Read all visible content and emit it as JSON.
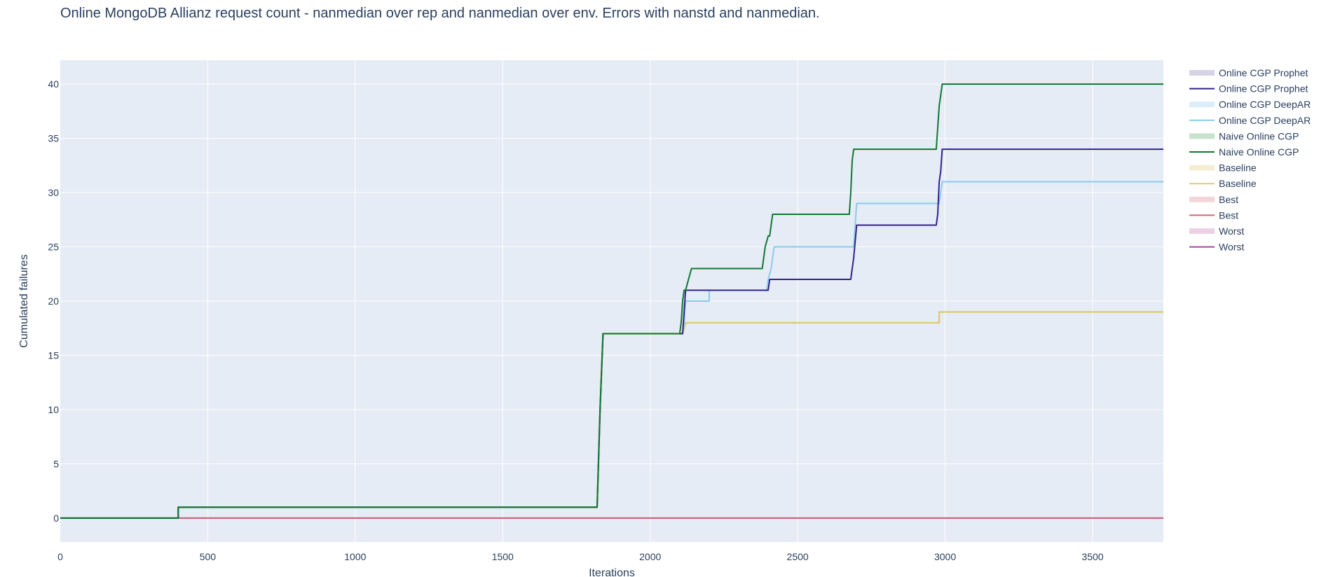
{
  "chart_data": {
    "type": "line",
    "title": "Online MongoDB Allianz request count - nanmedian over rep and nanmedian over env. Errors with nanstd and nanmedian.",
    "xlabel": "Iterations",
    "ylabel": "Cumulated failures",
    "xlim": [
      0,
      3740
    ],
    "ylim": [
      -2.2,
      42.2
    ],
    "xticks": [
      0,
      500,
      1000,
      1500,
      2000,
      2500,
      3000,
      3500
    ],
    "yticks": [
      0,
      5,
      10,
      15,
      20,
      25,
      30,
      35,
      40
    ],
    "grid": true,
    "legend_position": "right",
    "colors": {
      "plot_bg": "#e5ecf6",
      "grid": "#ffffff",
      "text": "#2a3f5f"
    },
    "legend": [
      {
        "label": "Online CGP Prophet",
        "kind": "band",
        "color": "#d7d2e8"
      },
      {
        "label": "Online CGP Prophet",
        "kind": "line",
        "color": "#332288"
      },
      {
        "label": "Online CGP DeepAR",
        "kind": "band",
        "color": "#dbeef9"
      },
      {
        "label": "Online CGP DeepAR",
        "kind": "line",
        "color": "#88ccee"
      },
      {
        "label": "Naive Online CGP",
        "kind": "band",
        "color": "#c9e1cf"
      },
      {
        "label": "Naive Online CGP",
        "kind": "line",
        "color": "#117733"
      },
      {
        "label": "Baseline",
        "kind": "band",
        "color": "#f6eed3"
      },
      {
        "label": "Baseline",
        "kind": "line",
        "color": "#ddcc77"
      },
      {
        "label": "Best",
        "kind": "band",
        "color": "#f2d6dc"
      },
      {
        "label": "Best",
        "kind": "line",
        "color": "#cc6677"
      },
      {
        "label": "Worst",
        "kind": "band",
        "color": "#ecd0e6"
      },
      {
        "label": "Worst",
        "kind": "line",
        "color": "#aa4499"
      }
    ],
    "series": [
      {
        "name": "Worst",
        "color": "#aa4499",
        "width": 2,
        "x": [
          0,
          3740
        ],
        "y": [
          0,
          0
        ]
      },
      {
        "name": "Best",
        "color": "#cc6677",
        "width": 2,
        "x": [
          0,
          3740
        ],
        "y": [
          0,
          0
        ]
      },
      {
        "name": "Baseline",
        "color": "#ddcc77",
        "width": 2.5,
        "x": [
          0,
          400,
          400,
          1820,
          1830,
          1840,
          2110,
          2120,
          2980,
          2980,
          3740
        ],
        "y": [
          0,
          0,
          1,
          1,
          10,
          17,
          17,
          18,
          18,
          19,
          19
        ]
      },
      {
        "name": "Online CGP DeepAR",
        "color": "#88ccee",
        "width": 2,
        "x": [
          0,
          400,
          400,
          1820,
          1830,
          1840,
          2110,
          2115,
          2120,
          2200,
          2200,
          2395,
          2400,
          2410,
          2420,
          2690,
          2700,
          2980,
          2990,
          3740
        ],
        "y": [
          0,
          0,
          1,
          1,
          10,
          17,
          17,
          18,
          20,
          20,
          21,
          21,
          22,
          23,
          25,
          25,
          29,
          29,
          31,
          31
        ]
      },
      {
        "name": "Online CGP Prophet",
        "color": "#332288",
        "width": 2,
        "x": [
          0,
          400,
          400,
          1820,
          1830,
          1840,
          2110,
          2115,
          2120,
          2400,
          2400,
          2405,
          2410,
          2680,
          2685,
          2690,
          2700,
          2970,
          2975,
          2980,
          2985,
          2990,
          3740
        ],
        "y": [
          0,
          0,
          1,
          1,
          10,
          17,
          17,
          19,
          21,
          21,
          21,
          22,
          22,
          22,
          23,
          24,
          27,
          27,
          28,
          31,
          32,
          34,
          34
        ]
      },
      {
        "name": "Naive Online CGP",
        "color": "#117733",
        "width": 2,
        "x": [
          0,
          400,
          400,
          1820,
          1830,
          1840,
          2100,
          2105,
          2110,
          2115,
          2120,
          2130,
          2140,
          2380,
          2385,
          2390,
          2400,
          2405,
          2410,
          2415,
          2420,
          2675,
          2680,
          2685,
          2690,
          2695,
          2970,
          2975,
          2980,
          2985,
          2990,
          3740
        ],
        "y": [
          0,
          0,
          1,
          1,
          10,
          17,
          17,
          18,
          20,
          21,
          21,
          22,
          23,
          23,
          24,
          25,
          26,
          26,
          27,
          28,
          28,
          28,
          30,
          33,
          34,
          34,
          34,
          36,
          38,
          39,
          40,
          40
        ]
      }
    ]
  }
}
